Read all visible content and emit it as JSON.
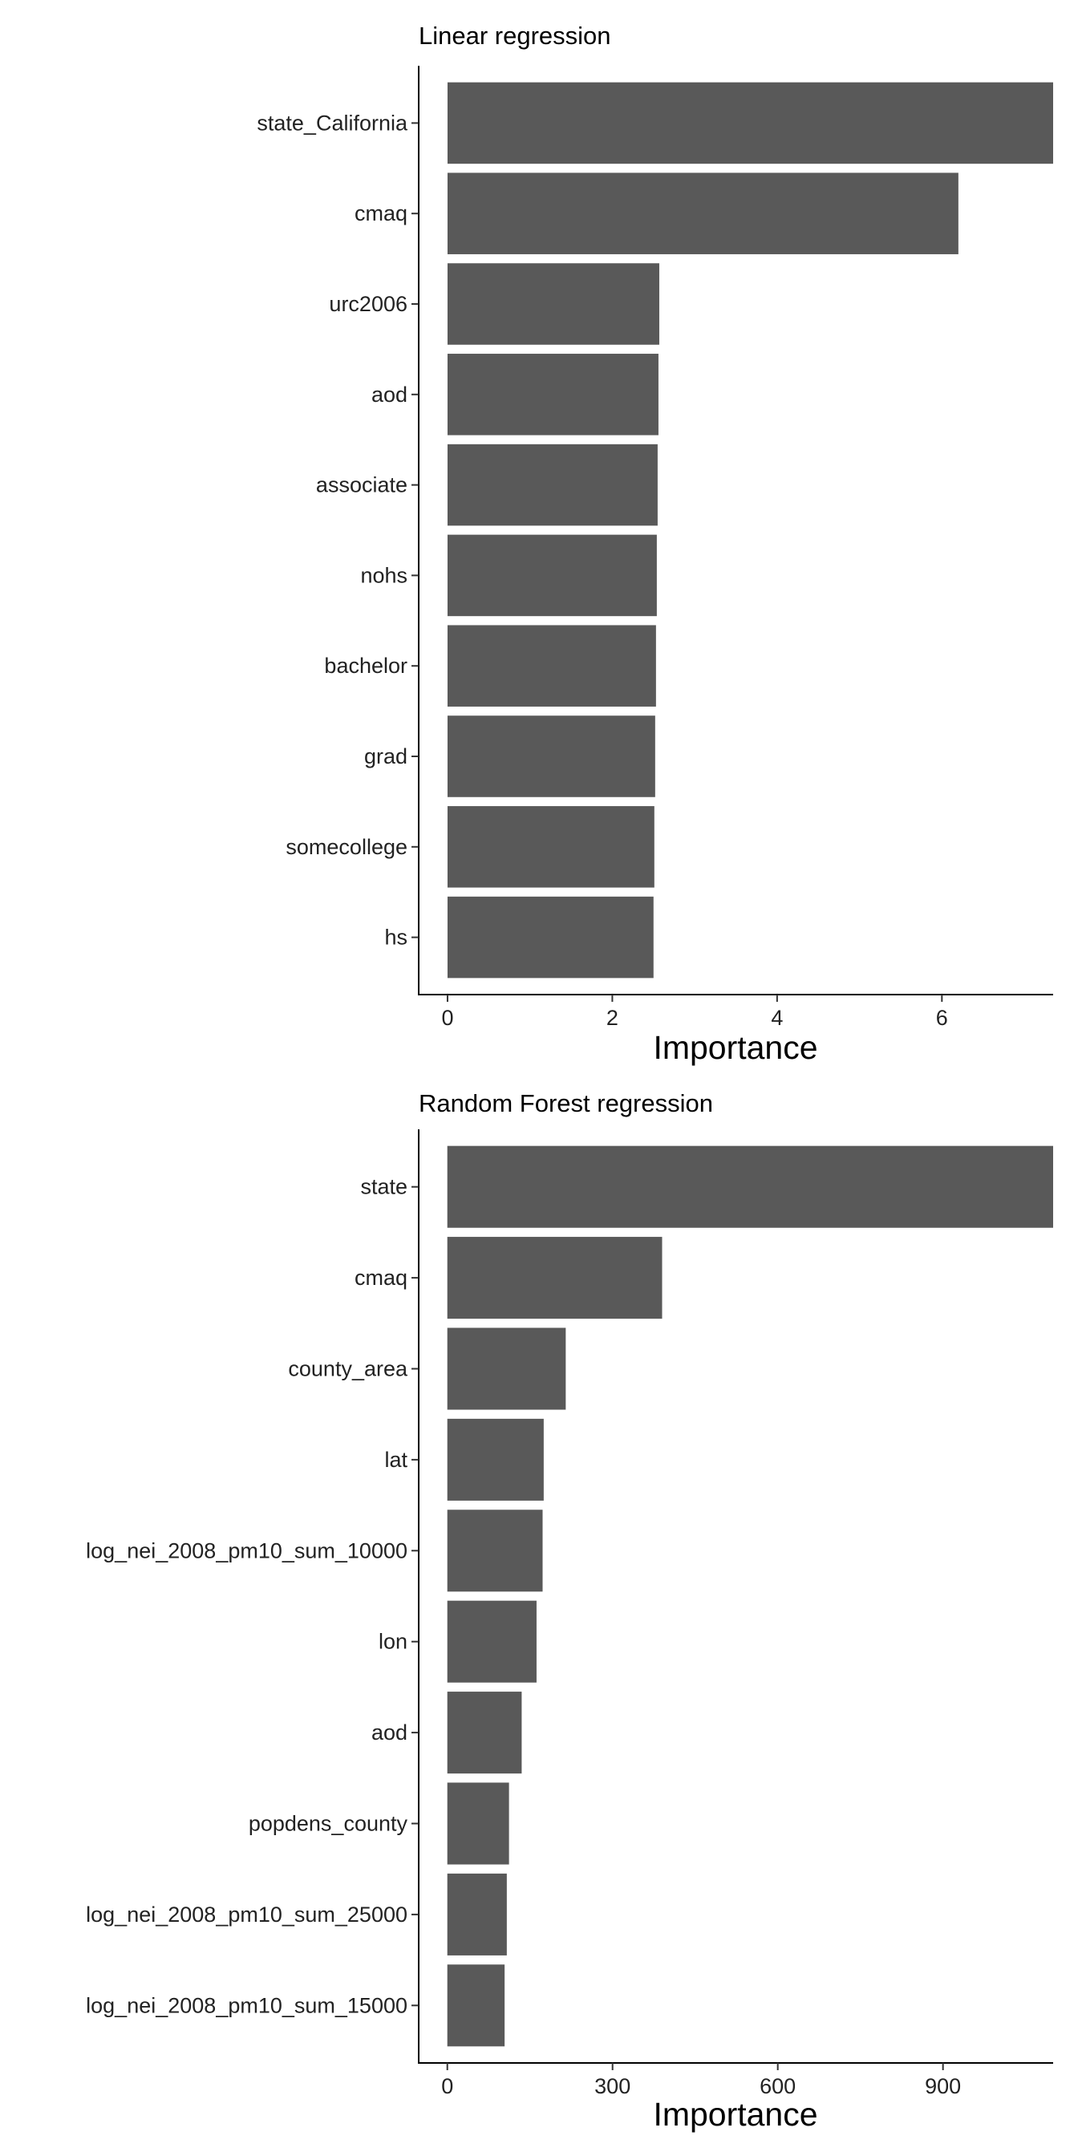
{
  "chart_data": [
    {
      "type": "bar",
      "orientation": "horizontal",
      "title": "Linear regression",
      "xlabel": "Importance",
      "ylabel": "",
      "xlim": [
        -0.35,
        7.35
      ],
      "xticks": [
        0,
        2,
        4,
        6
      ],
      "grid": false,
      "bar_color": "#595959",
      "categories": [
        "state_California",
        "cmaq",
        "urc2006",
        "aod",
        "associate",
        "nohs",
        "bachelor",
        "grad",
        "somecollege",
        "hs"
      ],
      "values": [
        7.35,
        6.2,
        2.57,
        2.56,
        2.55,
        2.54,
        2.53,
        2.52,
        2.51,
        2.5
      ]
    },
    {
      "type": "bar",
      "orientation": "horizontal",
      "title": "Random Forest regression",
      "xlabel": "Importance",
      "ylabel": "",
      "xlim": [
        -52,
        1100
      ],
      "xticks": [
        0,
        300,
        600,
        900
      ],
      "grid": false,
      "bar_color": "#595959",
      "categories": [
        "state",
        "cmaq",
        "county_area",
        "lat",
        "log_nei_2008_pm10_sum_10000",
        "lon",
        "aod",
        "popdens_county",
        "log_nei_2008_pm10_sum_25000",
        "log_nei_2008_pm10_sum_15000"
      ],
      "values": [
        1100,
        390,
        215,
        175,
        173,
        162,
        135,
        112,
        108,
        104
      ]
    }
  ]
}
